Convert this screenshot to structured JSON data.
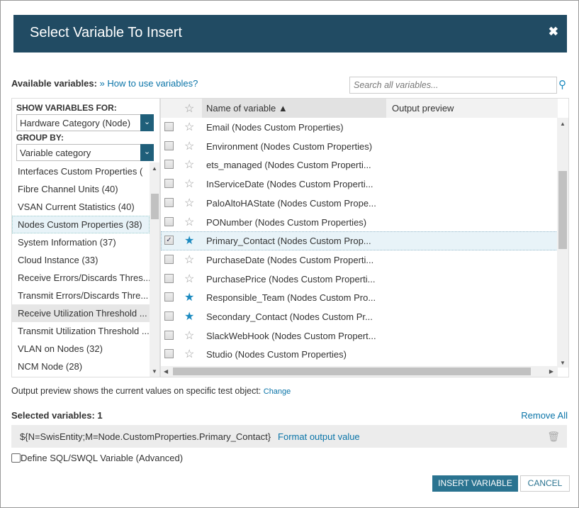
{
  "dialog": {
    "title": "Select Variable To Insert",
    "close": "✖"
  },
  "available": {
    "label": "Available variables:",
    "sep": "»",
    "help_link": "How to use variables?"
  },
  "search": {
    "placeholder": "Search all variables..."
  },
  "filters": {
    "show_label": "SHOW VARIABLES FOR:",
    "show_value": "Hardware Category (Node)",
    "group_label": "GROUP BY:",
    "group_value": "Variable category"
  },
  "categories": [
    {
      "label": "Interfaces Custom Properties (",
      "state": ""
    },
    {
      "label": "Fibre Channel Units (40)",
      "state": ""
    },
    {
      "label": "VSAN Current Statistics (40)",
      "state": ""
    },
    {
      "label": "Nodes Custom Properties (38)",
      "state": "selected"
    },
    {
      "label": "System Information (37)",
      "state": ""
    },
    {
      "label": "Cloud Instance (33)",
      "state": ""
    },
    {
      "label": "Receive Errors/Discards Thres...",
      "state": ""
    },
    {
      "label": "Transmit Errors/Discards Thre...",
      "state": ""
    },
    {
      "label": "Receive Utilization Threshold ...",
      "state": "hover"
    },
    {
      "label": "Transmit Utilization Threshold ...",
      "state": ""
    },
    {
      "label": "VLAN on Nodes (32)",
      "state": ""
    },
    {
      "label": "NCM Node (28)",
      "state": ""
    }
  ],
  "grid": {
    "col_name": "Name of variable ▲",
    "col_preview": "Output preview",
    "rows": [
      {
        "name": "Email (Nodes Custom Properties)",
        "checked": false,
        "fav": false
      },
      {
        "name": "Environment (Nodes Custom Properties)",
        "checked": false,
        "fav": false
      },
      {
        "name": "ets_managed (Nodes Custom Properti...",
        "checked": false,
        "fav": false
      },
      {
        "name": "InServiceDate (Nodes Custom Properti...",
        "checked": false,
        "fav": false
      },
      {
        "name": "PaloAltoHAState (Nodes Custom Prope...",
        "checked": false,
        "fav": false
      },
      {
        "name": "PONumber (Nodes Custom Properties)",
        "checked": false,
        "fav": false
      },
      {
        "name": "Primary_Contact (Nodes Custom Prop...",
        "checked": true,
        "fav": true
      },
      {
        "name": "PurchaseDate (Nodes Custom Properti...",
        "checked": false,
        "fav": false
      },
      {
        "name": "PurchasePrice (Nodes Custom Properti...",
        "checked": false,
        "fav": false
      },
      {
        "name": "Responsible_Team (Nodes Custom Pro...",
        "checked": false,
        "fav": true
      },
      {
        "name": "Secondary_Contact (Nodes Custom Pr...",
        "checked": false,
        "fav": true
      },
      {
        "name": "SlackWebHook (Nodes Custom Propert...",
        "checked": false,
        "fav": false
      },
      {
        "name": "Studio (Nodes Custom Properties)",
        "checked": false,
        "fav": false
      }
    ]
  },
  "output_note": {
    "text": "Output preview shows the current values on specific test object:",
    "link": "Change"
  },
  "selected": {
    "label": "Selected variables: 1",
    "remove_all": "Remove All",
    "value": "${N=SwisEntity;M=Node.CustomProperties.Primary_Contact}",
    "format_link": "Format output value"
  },
  "advanced": {
    "label": "Define SQL/SWQL Variable (Advanced)",
    "checked": false
  },
  "buttons": {
    "insert": "INSERT VARIABLE",
    "cancel": "CANCEL"
  },
  "colors": {
    "header": "#214b63",
    "accent": "#0a74a8",
    "primary_button": "#2a7390"
  }
}
